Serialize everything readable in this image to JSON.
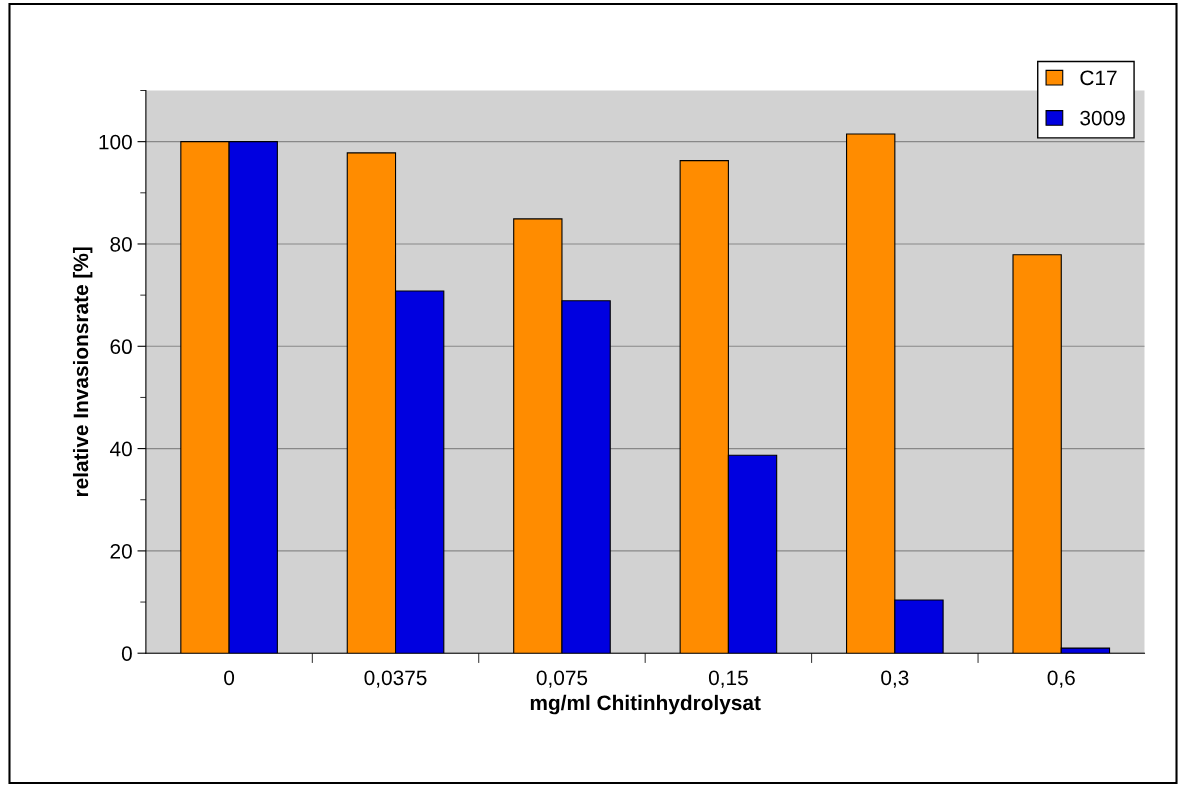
{
  "chart_data": {
    "type": "bar",
    "xlabel": "mg/ml Chitinhydrolysat",
    "ylabel": "relative Invasionsrate [%]",
    "categories": [
      "0",
      "0,0375",
      "0,075",
      "0,15",
      "0,3",
      "0,6"
    ],
    "series": [
      {
        "name": "C17",
        "color": "#ff8c00",
        "values": [
          100,
          97.8,
          84.9,
          96.3,
          101.5,
          77.9
        ]
      },
      {
        "name": "3009",
        "color": "#0000e0",
        "values": [
          100,
          70.8,
          68.9,
          38.7,
          10.4,
          1.0
        ]
      }
    ],
    "ylim": [
      0,
      110
    ],
    "yticks": [
      0,
      {
        "value": 10,
        "label": null
      },
      20,
      {
        "value": 30,
        "label": null
      },
      40,
      {
        "value": 50,
        "label": null
      },
      60,
      {
        "value": 70,
        "label": null
      },
      80,
      {
        "value": 90,
        "label": null
      },
      100,
      {
        "value": 110,
        "label": null
      }
    ],
    "grid": "y",
    "legend": "top right"
  }
}
